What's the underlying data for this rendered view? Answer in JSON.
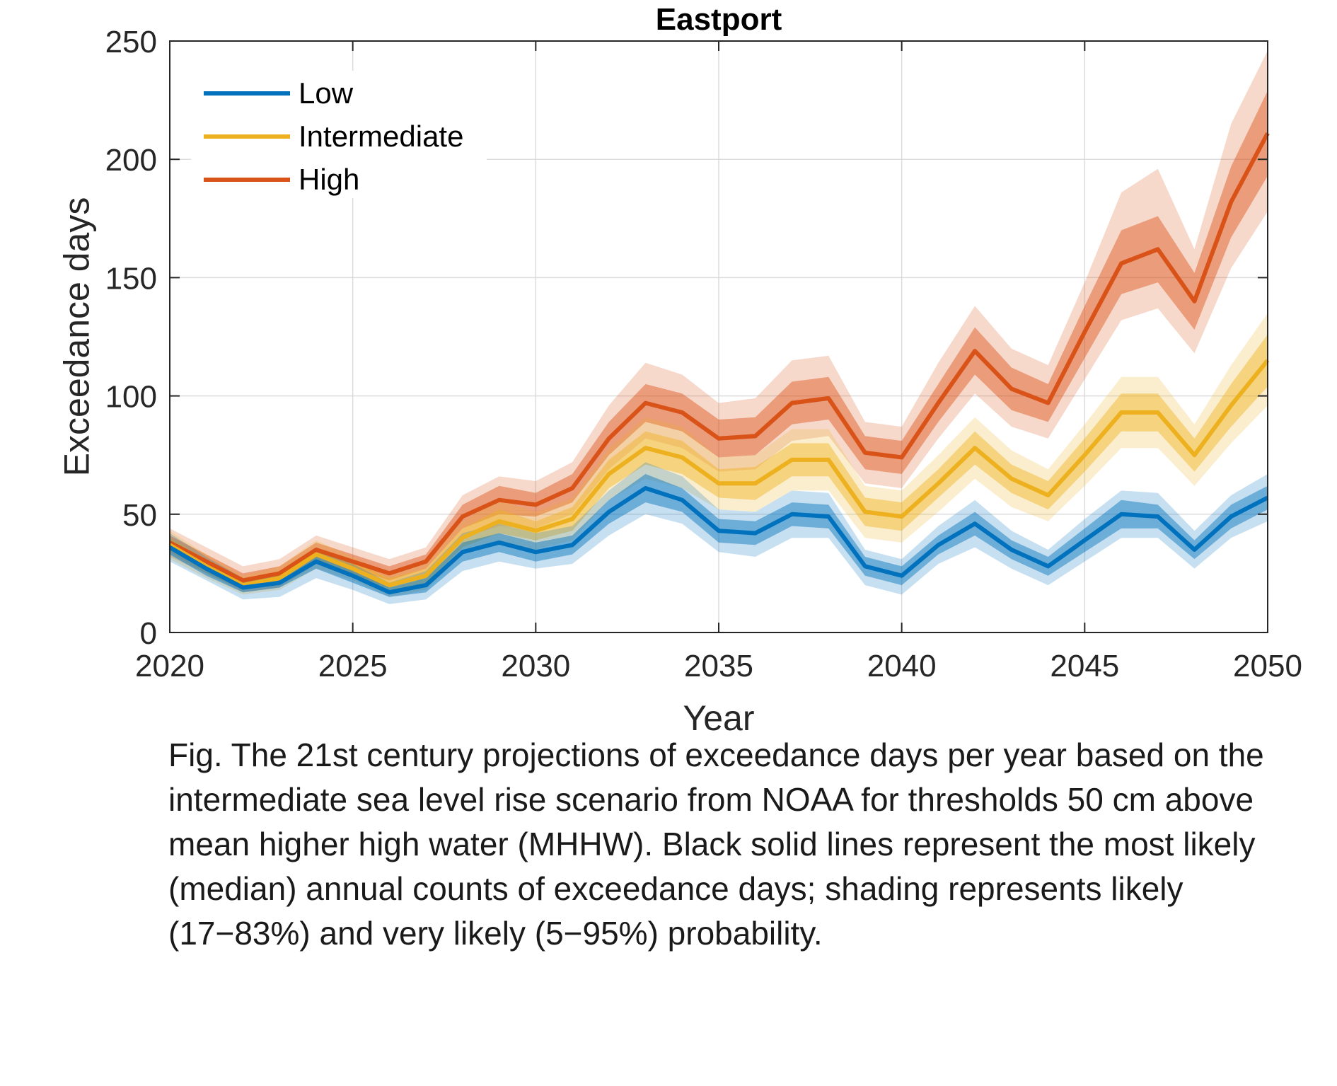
{
  "caption": "Fig. The 21st century projections of exceedance days per year based on the intermediate sea level rise scenario from NOAA for thresholds 50 cm above mean higher high water (MHHW). Black solid lines represent the most likely (median) annual counts of exceedance days; shading represents likely (17−83%) and very likely (5−95%) probability.",
  "chart_data": {
    "type": "line",
    "title": "Eastport",
    "xlabel": "Year",
    "ylabel": "Exceedance days",
    "xlim": [
      2020,
      2050
    ],
    "ylim": [
      0,
      250
    ],
    "xticks": [
      2020,
      2025,
      2030,
      2035,
      2040,
      2045,
      2050
    ],
    "yticks": [
      0,
      50,
      100,
      150,
      200,
      250
    ],
    "grid": true,
    "legend_position": "top-left",
    "x": [
      2020,
      2021,
      2022,
      2023,
      2024,
      2025,
      2026,
      2027,
      2028,
      2029,
      2030,
      2031,
      2032,
      2033,
      2034,
      2035,
      2036,
      2037,
      2038,
      2039,
      2040,
      2041,
      2042,
      2043,
      2044,
      2045,
      2046,
      2047,
      2048,
      2049,
      2050
    ],
    "series": [
      {
        "name": "Low",
        "color": "#0072BD",
        "median": [
          36,
          27,
          19,
          21,
          30,
          24,
          17,
          20,
          34,
          38,
          34,
          37,
          51,
          61,
          56,
          43,
          42,
          50,
          49,
          28,
          24,
          37,
          46,
          35,
          28,
          39,
          50,
          49,
          35,
          49,
          57
        ],
        "likely_lower": [
          33,
          24,
          17,
          19,
          27,
          21,
          15,
          17,
          30,
          34,
          30,
          33,
          46,
          55,
          51,
          38,
          37,
          45,
          44,
          24,
          20,
          33,
          41,
          31,
          24,
          34,
          44,
          44,
          31,
          44,
          52
        ],
        "likely_upper": [
          39,
          30,
          21,
          23,
          33,
          27,
          19,
          23,
          38,
          42,
          38,
          41,
          56,
          67,
          61,
          48,
          47,
          55,
          54,
          32,
          28,
          41,
          51,
          39,
          32,
          44,
          56,
          54,
          39,
          54,
          62
        ],
        "very_likely_lower": [
          30,
          22,
          14,
          15,
          23,
          18,
          12,
          14,
          26,
          30,
          27,
          29,
          41,
          50,
          46,
          34,
          32,
          40,
          40,
          20,
          16,
          29,
          36,
          27,
          20,
          30,
          40,
          40,
          27,
          40,
          47
        ],
        "very_likely_upper": [
          42,
          32,
          23,
          25,
          36,
          29,
          21,
          26,
          42,
          46,
          42,
          45,
          60,
          72,
          66,
          52,
          51,
          60,
          59,
          35,
          31,
          45,
          56,
          43,
          35,
          48,
          60,
          59,
          43,
          58,
          67
        ]
      },
      {
        "name": "Intermediate",
        "color": "#EDB120",
        "median": [
          37,
          28,
          20,
          23,
          33,
          27,
          20,
          24,
          40,
          47,
          43,
          48,
          67,
          78,
          74,
          63,
          63,
          73,
          73,
          51,
          49,
          63,
          78,
          65,
          58,
          75,
          93,
          93,
          75,
          96,
          115
        ],
        "likely_lower": [
          34,
          25,
          18,
          20,
          30,
          24,
          17,
          21,
          36,
          42,
          39,
          43,
          61,
          71,
          67,
          57,
          56,
          66,
          66,
          45,
          43,
          57,
          71,
          59,
          52,
          68,
          85,
          85,
          68,
          87,
          104
        ],
        "likely_upper": [
          40,
          31,
          22,
          26,
          36,
          30,
          23,
          27,
          44,
          52,
          47,
          53,
          73,
          85,
          81,
          69,
          70,
          80,
          80,
          57,
          55,
          69,
          85,
          71,
          64,
          82,
          101,
          101,
          82,
          105,
          126
        ],
        "very_likely_lower": [
          31,
          23,
          16,
          18,
          27,
          22,
          15,
          18,
          33,
          38,
          35,
          39,
          56,
          65,
          61,
          52,
          51,
          60,
          60,
          40,
          38,
          51,
          65,
          53,
          47,
          62,
          78,
          78,
          62,
          80,
          96
        ],
        "very_likely_upper": [
          43,
          33,
          24,
          28,
          39,
          32,
          25,
          30,
          47,
          56,
          51,
          57,
          78,
          91,
          87,
          74,
          75,
          86,
          86,
          62,
          60,
          75,
          91,
          77,
          69,
          88,
          108,
          108,
          88,
          113,
          135
        ]
      },
      {
        "name": "High",
        "color": "#D95319",
        "median": [
          38,
          30,
          22,
          25,
          35,
          30,
          25,
          30,
          49,
          56,
          54,
          61,
          82,
          97,
          93,
          82,
          83,
          97,
          99,
          76,
          74,
          97,
          119,
          103,
          97,
          127,
          156,
          162,
          140,
          182,
          211
        ],
        "likely_lower": [
          35,
          27,
          20,
          22,
          32,
          27,
          22,
          27,
          44,
          50,
          49,
          55,
          75,
          89,
          85,
          74,
          75,
          88,
          90,
          69,
          67,
          89,
          109,
          94,
          89,
          116,
          143,
          148,
          128,
          167,
          193
        ],
        "likely_upper": [
          41,
          33,
          25,
          28,
          38,
          33,
          28,
          33,
          54,
          62,
          59,
          67,
          89,
          105,
          101,
          90,
          91,
          106,
          108,
          83,
          81,
          105,
          129,
          112,
          105,
          138,
          170,
          176,
          152,
          197,
          229
        ],
        "very_likely_lower": [
          32,
          25,
          17,
          19,
          29,
          24,
          19,
          24,
          40,
          45,
          44,
          50,
          69,
          82,
          78,
          68,
          69,
          81,
          83,
          63,
          61,
          82,
          101,
          87,
          82,
          107,
          132,
          137,
          118,
          154,
          178
        ],
        "very_likely_upper": [
          44,
          36,
          28,
          31,
          41,
          36,
          31,
          36,
          58,
          66,
          64,
          72,
          96,
          114,
          109,
          97,
          99,
          115,
          117,
          89,
          87,
          114,
          138,
          120,
          113,
          148,
          186,
          196,
          162,
          215,
          246
        ]
      }
    ]
  }
}
